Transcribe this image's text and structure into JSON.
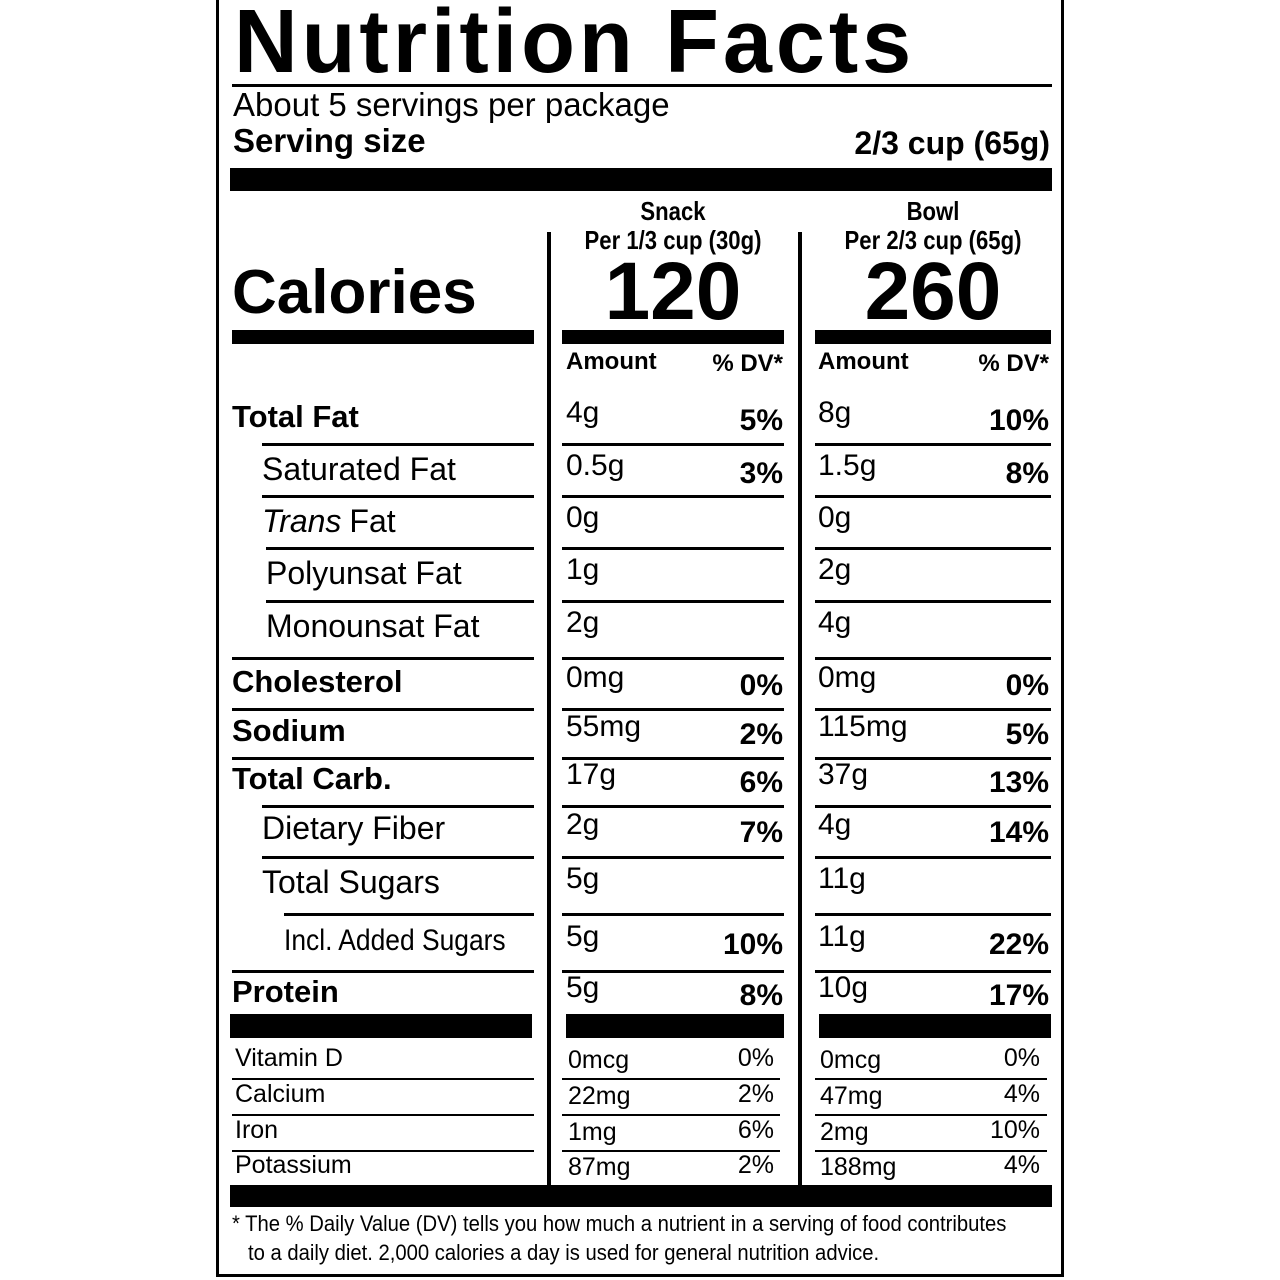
{
  "title": "Nutrition Facts",
  "servings_per_package": "About 5 servings per package",
  "serving_size": {
    "label": "Serving size",
    "value": "2/3 cup (65g)"
  },
  "calories_label": "Calories",
  "columns": [
    {
      "name": "Snack",
      "serving": "Per 1/3 cup (30g)",
      "calories": 120,
      "amount_header": "Amount",
      "dv_header": "% DV*"
    },
    {
      "name": "Bowl",
      "serving": "Per 2/3 cup (65g)",
      "calories": 260,
      "amount_header": "Amount",
      "dv_header": "% DV*"
    }
  ],
  "nutrients": [
    {
      "label": "Total Fat",
      "values": [
        {
          "amount": "4g",
          "dv": "5%"
        },
        {
          "amount": "8g",
          "dv": "10%"
        }
      ]
    },
    {
      "label": "Saturated Fat",
      "values": [
        {
          "amount": "0.5g",
          "dv": "3%"
        },
        {
          "amount": "1.5g",
          "dv": "8%"
        }
      ]
    },
    {
      "label_italic": "Trans",
      "label": "Fat",
      "values": [
        {
          "amount": "0g"
        },
        {
          "amount": "0g"
        }
      ]
    },
    {
      "label": "Polyunsat Fat",
      "values": [
        {
          "amount": "1g"
        },
        {
          "amount": "2g"
        }
      ]
    },
    {
      "label": "Monounsat Fat",
      "values": [
        {
          "amount": "2g"
        },
        {
          "amount": "4g"
        }
      ]
    },
    {
      "label": "Cholesterol",
      "values": [
        {
          "amount": "0mg",
          "dv": "0%"
        },
        {
          "amount": "0mg",
          "dv": "0%"
        }
      ]
    },
    {
      "label": "Sodium",
      "values": [
        {
          "amount": "55mg",
          "dv": "2%"
        },
        {
          "amount": "115mg",
          "dv": "5%"
        }
      ]
    },
    {
      "label": "Total Carb.",
      "values": [
        {
          "amount": "17g",
          "dv": "6%"
        },
        {
          "amount": "37g",
          "dv": "13%"
        }
      ]
    },
    {
      "label": "Dietary Fiber",
      "values": [
        {
          "amount": "2g",
          "dv": "7%"
        },
        {
          "amount": "4g",
          "dv": "14%"
        }
      ]
    },
    {
      "label": "Total Sugars",
      "values": [
        {
          "amount": "5g"
        },
        {
          "amount": "11g"
        }
      ]
    },
    {
      "label": "Incl. Added Sugars",
      "values": [
        {
          "amount": "5g",
          "dv": "10%"
        },
        {
          "amount": "11g",
          "dv": "22%"
        }
      ]
    },
    {
      "label": "Protein",
      "values": [
        {
          "amount": "5g",
          "dv": "8%"
        },
        {
          "amount": "10g",
          "dv": "17%"
        }
      ]
    }
  ],
  "vitamins": [
    {
      "label": "Vitamin D",
      "values": [
        {
          "amount": "0mcg",
          "dv": "0%"
        },
        {
          "amount": "0mcg",
          "dv": "0%"
        }
      ]
    },
    {
      "label": "Calcium",
      "values": [
        {
          "amount": "22mg",
          "dv": "2%"
        },
        {
          "amount": "47mg",
          "dv": "4%"
        }
      ]
    },
    {
      "label": "Iron",
      "values": [
        {
          "amount": "1mg",
          "dv": "6%"
        },
        {
          "amount": "2mg",
          "dv": "10%"
        }
      ]
    },
    {
      "label": "Potassium",
      "values": [
        {
          "amount": "87mg",
          "dv": "2%"
        },
        {
          "amount": "188mg",
          "dv": "4%"
        }
      ]
    }
  ],
  "footnote": [
    "* The % Daily Value (DV) tells you how much a nutrient in a serving of food contributes",
    "to a daily diet. 2,000 calories a day is used for general nutrition advice."
  ]
}
